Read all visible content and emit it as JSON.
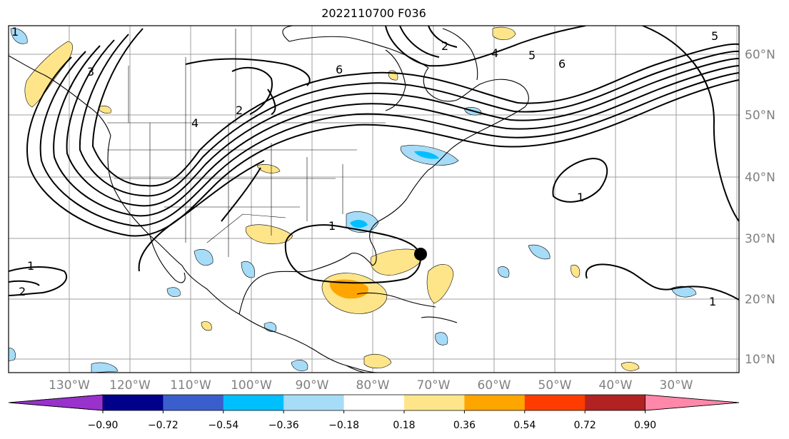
{
  "title": "2022110700 F036",
  "latitude_labels": [
    "60°N",
    "50°N",
    "40°N",
    "30°N",
    "20°N",
    "10°N"
  ],
  "longitude_labels": [
    "130°W",
    "120°W",
    "110°W",
    "100°W",
    "90°W",
    "80°W",
    "70°W",
    "60°W",
    "50°W",
    "40°W",
    "30°W"
  ],
  "colorbar": {
    "tick_labels": [
      "−0.90",
      "−0.72",
      "−0.54",
      "−0.36",
      "−0.18",
      "0.18",
      "0.36",
      "0.54",
      "0.72",
      "0.90"
    ],
    "colors": [
      "#9932cc",
      "#00008b",
      "#3a5fcd",
      "#00bfff",
      "#a6dcf8",
      "#ffffff",
      "#ffe58a",
      "#ffa500",
      "#ff3c00",
      "#b22222",
      "#ff88aa"
    ]
  },
  "contour_labels": [
    "1",
    "2",
    "3",
    "4",
    "5",
    "6"
  ],
  "marker": "storm-center-dot"
}
